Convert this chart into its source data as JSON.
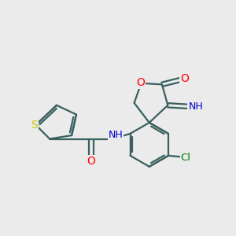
{
  "bg_color": "#ebebeb",
  "atom_colors": {
    "S": "#c8c800",
    "O": "#ff0000",
    "N": "#0000cd",
    "Cl": "#008000",
    "C": "#000000",
    "H": "#607070"
  },
  "bond_color": "#3a6060",
  "bond_lw": 1.6,
  "font_size_atom": 8.5,
  "fig_size": [
    3.0,
    3.0
  ],
  "dpi": 100
}
